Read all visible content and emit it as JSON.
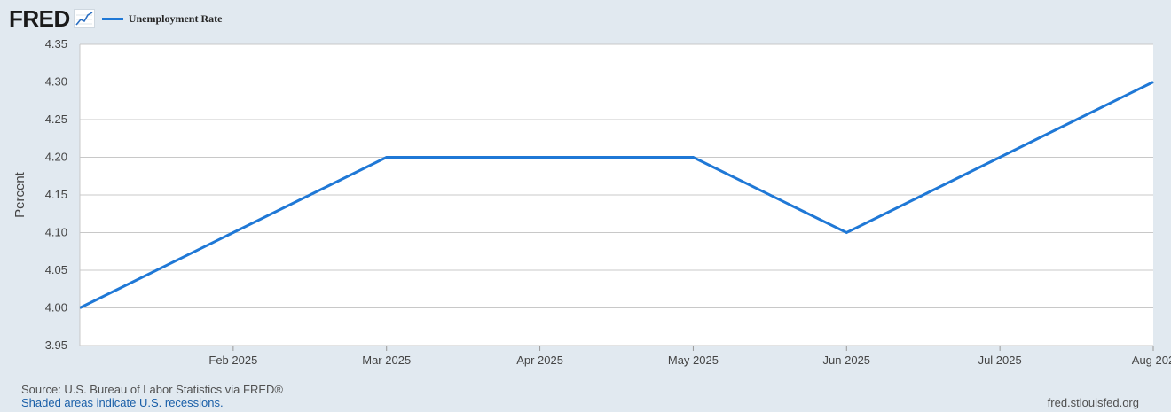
{
  "header": {
    "logo_text": "FRED",
    "logo_icon": "line-graph-icon"
  },
  "legend": {
    "series_name": "Unemployment Rate",
    "color": "#1f78d6"
  },
  "chart_data": {
    "type": "line",
    "title": "",
    "ylabel": "Percent",
    "xlabel": "",
    "ylim": [
      3.95,
      4.35
    ],
    "yticks": [
      "3.95",
      "4.00",
      "4.05",
      "4.10",
      "4.15",
      "4.20",
      "4.25",
      "4.30",
      "4.35"
    ],
    "x": [
      "2025-01",
      "2025-02",
      "2025-03",
      "2025-04",
      "2025-05",
      "2025-06",
      "2025-07",
      "2025-08"
    ],
    "xtick_labels": [
      "Feb 2025",
      "Mar 2025",
      "Apr 2025",
      "May 2025",
      "Jun 2025",
      "Jul 2025",
      "Aug 202"
    ],
    "series": [
      {
        "name": "Unemployment Rate",
        "values": [
          4.0,
          4.1,
          4.2,
          4.2,
          4.2,
          4.1,
          4.2,
          4.3
        ]
      }
    ],
    "grid": true,
    "line_color": "#1f78d6"
  },
  "footer": {
    "source": "Source: U.S. Bureau of Labor Statistics via FRED®",
    "recession_note": "Shaded areas indicate U.S. recessions.",
    "site": "fred.stlouisfed.org"
  }
}
